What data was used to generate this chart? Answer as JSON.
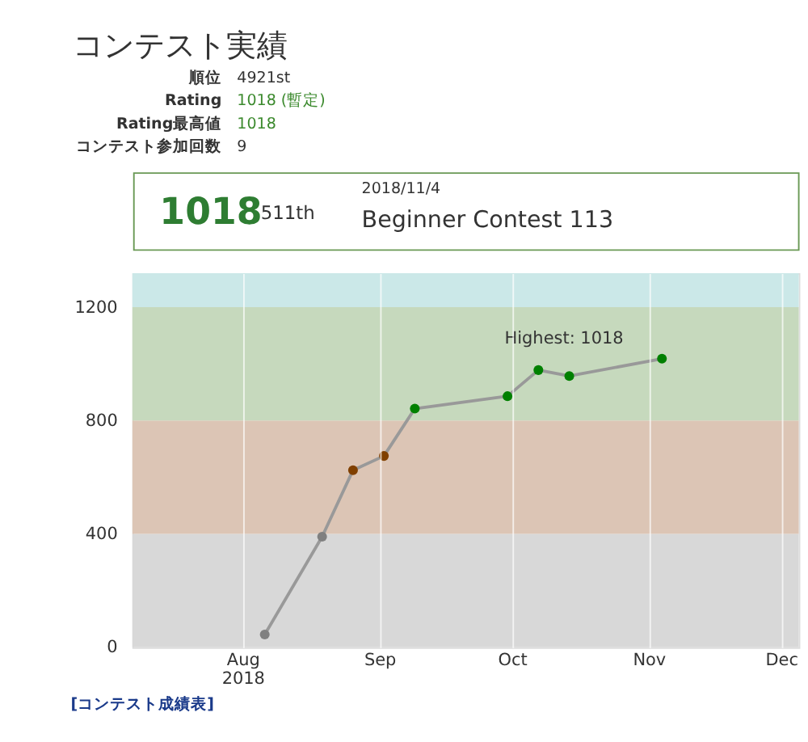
{
  "chart_data": {
    "type": "line",
    "title": "コンテスト実績",
    "x": [
      "2018-08-06",
      "2018-08-19",
      "2018-08-26",
      "2018-09-02",
      "2018-09-09",
      "2018-09-30",
      "2018-10-07",
      "2018-10-14",
      "2018-11-04"
    ],
    "series": [
      {
        "color": "#999999",
        "values": [
          45,
          390,
          625,
          675,
          842,
          886,
          978,
          957,
          1018
        ],
        "colors": [
          "#808080",
          "#808080",
          "#804000",
          "#804000",
          "#008000",
          "#008000",
          "#008000",
          "#008000",
          "#008000"
        ]
      }
    ],
    "xlim": [
      "2018-07-07",
      "2018-12-05"
    ],
    "xticks": [
      {
        "value": "2018-08-01",
        "label": "Aug 2018"
      },
      {
        "value": "2018-09-01",
        "label": "Sep"
      },
      {
        "value": "2018-10-01",
        "label": "Oct"
      },
      {
        "value": "2018-11-01",
        "label": "Nov"
      },
      {
        "value": "2018-12-01",
        "label": "Dec"
      }
    ],
    "ylim": [
      0,
      1320
    ],
    "yticks": [
      0,
      400,
      800,
      1200
    ],
    "bands": [
      {
        "axis": "y",
        "from": 0,
        "to": 400,
        "color": "#d8d8d8"
      },
      {
        "axis": "y",
        "from": 400,
        "to": 800,
        "color": "#dcc5b5"
      },
      {
        "axis": "y",
        "from": 800,
        "to": 1200,
        "color": "#c6d9bd"
      },
      {
        "axis": "y",
        "from": 1200,
        "to": 1320,
        "color": "#cbe8e8"
      }
    ],
    "grid": "x",
    "marker": "circle",
    "line_style": "solid",
    "legend": false,
    "annotations": [
      "順位",
      "4921st",
      "Rating",
      "1018 (暫定)",
      "Rating最高値",
      "1018",
      "コンテスト参加回数",
      "9",
      "1018",
      "511th",
      "2018/11/4",
      "Beginner Contest 113",
      {
        "text": "Highest: 1018",
        "x": "2018-11-04",
        "y": 1018
      },
      "[コンテスト成績表]"
    ]
  }
}
